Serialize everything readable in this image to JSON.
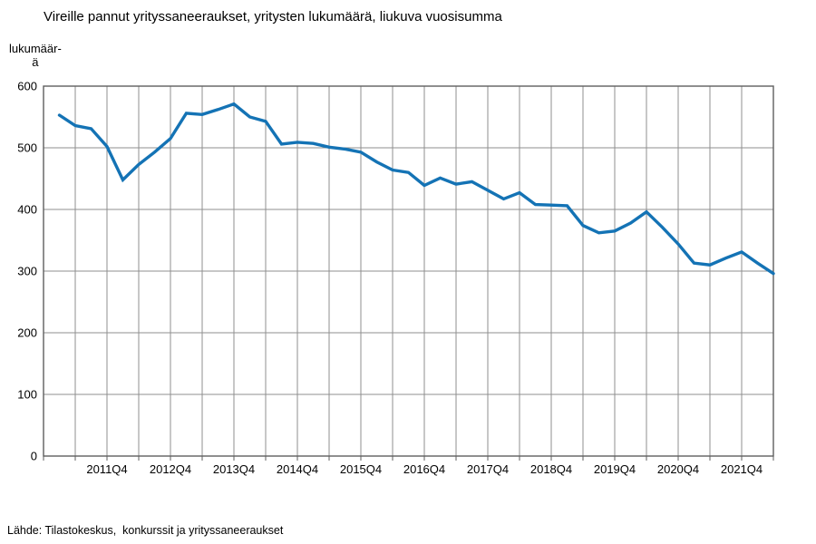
{
  "title": "Vireille pannut yrityssaneeraukset, yritysten lukumäärä, liukuva vuosisumma",
  "y_axis_title_line1": "lukumäär-",
  "y_axis_title_line2": "ä",
  "source": "Lähde: Tilastokeskus,  konkurssit ja yrityssaneeraukset",
  "colors": {
    "line": "#1473b5",
    "grid": "#8f8f8f",
    "border": "#5f5f5f",
    "text": "#000000",
    "background": "#ffffff"
  },
  "chart_data": {
    "type": "line",
    "title": "Vireille pannut yrityssaneeraukset, yritysten lukumäärä, liukuva vuosisumma",
    "ylabel": "lukumäärä",
    "xlabel": "",
    "grid": true,
    "legend": "none",
    "ylim": [
      0,
      600
    ],
    "y_ticks": [
      0,
      100,
      200,
      300,
      400,
      500,
      600
    ],
    "x_tick_labels": [
      "2011Q4",
      "2012Q4",
      "2013Q4",
      "2014Q4",
      "2015Q4",
      "2016Q4",
      "2017Q4",
      "2018Q4",
      "2019Q4",
      "2020Q4",
      "2021Q4"
    ],
    "x": [
      "2011Q1",
      "2011Q2",
      "2011Q3",
      "2011Q4",
      "2012Q1",
      "2012Q2",
      "2012Q3",
      "2012Q4",
      "2013Q1",
      "2013Q2",
      "2013Q3",
      "2013Q4",
      "2014Q1",
      "2014Q2",
      "2014Q3",
      "2014Q4",
      "2015Q1",
      "2015Q2",
      "2015Q3",
      "2015Q4",
      "2016Q1",
      "2016Q2",
      "2016Q3",
      "2016Q4",
      "2017Q1",
      "2017Q2",
      "2017Q3",
      "2017Q4",
      "2018Q1",
      "2018Q2",
      "2018Q3",
      "2018Q4",
      "2019Q1",
      "2019Q2",
      "2019Q3",
      "2019Q4",
      "2020Q1",
      "2020Q2",
      "2020Q3",
      "2020Q4",
      "2021Q1",
      "2021Q2",
      "2021Q3",
      "2021Q4",
      "2022Q1",
      "2022Q2"
    ],
    "values": [
      553,
      536,
      531,
      502,
      448,
      473,
      493,
      515,
      556,
      554,
      562,
      571,
      550,
      543,
      506,
      509,
      507,
      501,
      498,
      493,
      477,
      464,
      460,
      439,
      451,
      441,
      445,
      431,
      417,
      427,
      408,
      407,
      406,
      374,
      362,
      365,
      378,
      396,
      371,
      344,
      313,
      310,
      321,
      331,
      313,
      296
    ],
    "series_name": "Vireille pannut yrityssaneeraukset, liukuva vuosisumma",
    "source": "Lähde: Tilastokeskus,  konkurssit ja yrityssaneeraukset"
  }
}
